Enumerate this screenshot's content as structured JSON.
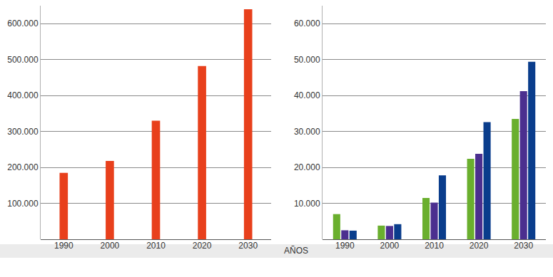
{
  "chart_data": [
    {
      "type": "bar",
      "categories": [
        "1990",
        "2000",
        "2010",
        "2020",
        "2030"
      ],
      "values": [
        185000,
        218000,
        330000,
        482000,
        640000
      ],
      "color": "#e8401c",
      "ylim": [
        0,
        650000
      ],
      "yticks": [
        {
          "value": 100000,
          "label": "100.000"
        },
        {
          "value": 200000,
          "label": "200.000"
        },
        {
          "value": 300000,
          "label": "300.000"
        },
        {
          "value": 400000,
          "label": "400.000"
        },
        {
          "value": 500000,
          "label": "500.000"
        },
        {
          "value": 600000,
          "label": "600.000"
        }
      ],
      "grid": true
    },
    {
      "type": "bar",
      "categories": [
        "1990",
        "2000",
        "2010",
        "2020",
        "2030"
      ],
      "series": [
        {
          "color": "#6aaf2e",
          "values": [
            7000,
            3800,
            11500,
            22400,
            33500
          ]
        },
        {
          "color": "#4b2f8f",
          "values": [
            2500,
            3700,
            10200,
            23800,
            41200
          ]
        },
        {
          "color": "#0a3d8c",
          "values": [
            2400,
            4200,
            17800,
            32600,
            49400
          ]
        }
      ],
      "ylim": [
        0,
        65000
      ],
      "yticks": [
        {
          "value": 10000,
          "label": "10.000"
        },
        {
          "value": 20000,
          "label": "20.000"
        },
        {
          "value": 30000,
          "label": "30.000"
        },
        {
          "value": 40000,
          "label": "40.000"
        },
        {
          "value": 50000,
          "label": "50.000"
        },
        {
          "value": 60000,
          "label": "60.000"
        }
      ],
      "grid": true
    }
  ],
  "x_label": "AÑOS"
}
